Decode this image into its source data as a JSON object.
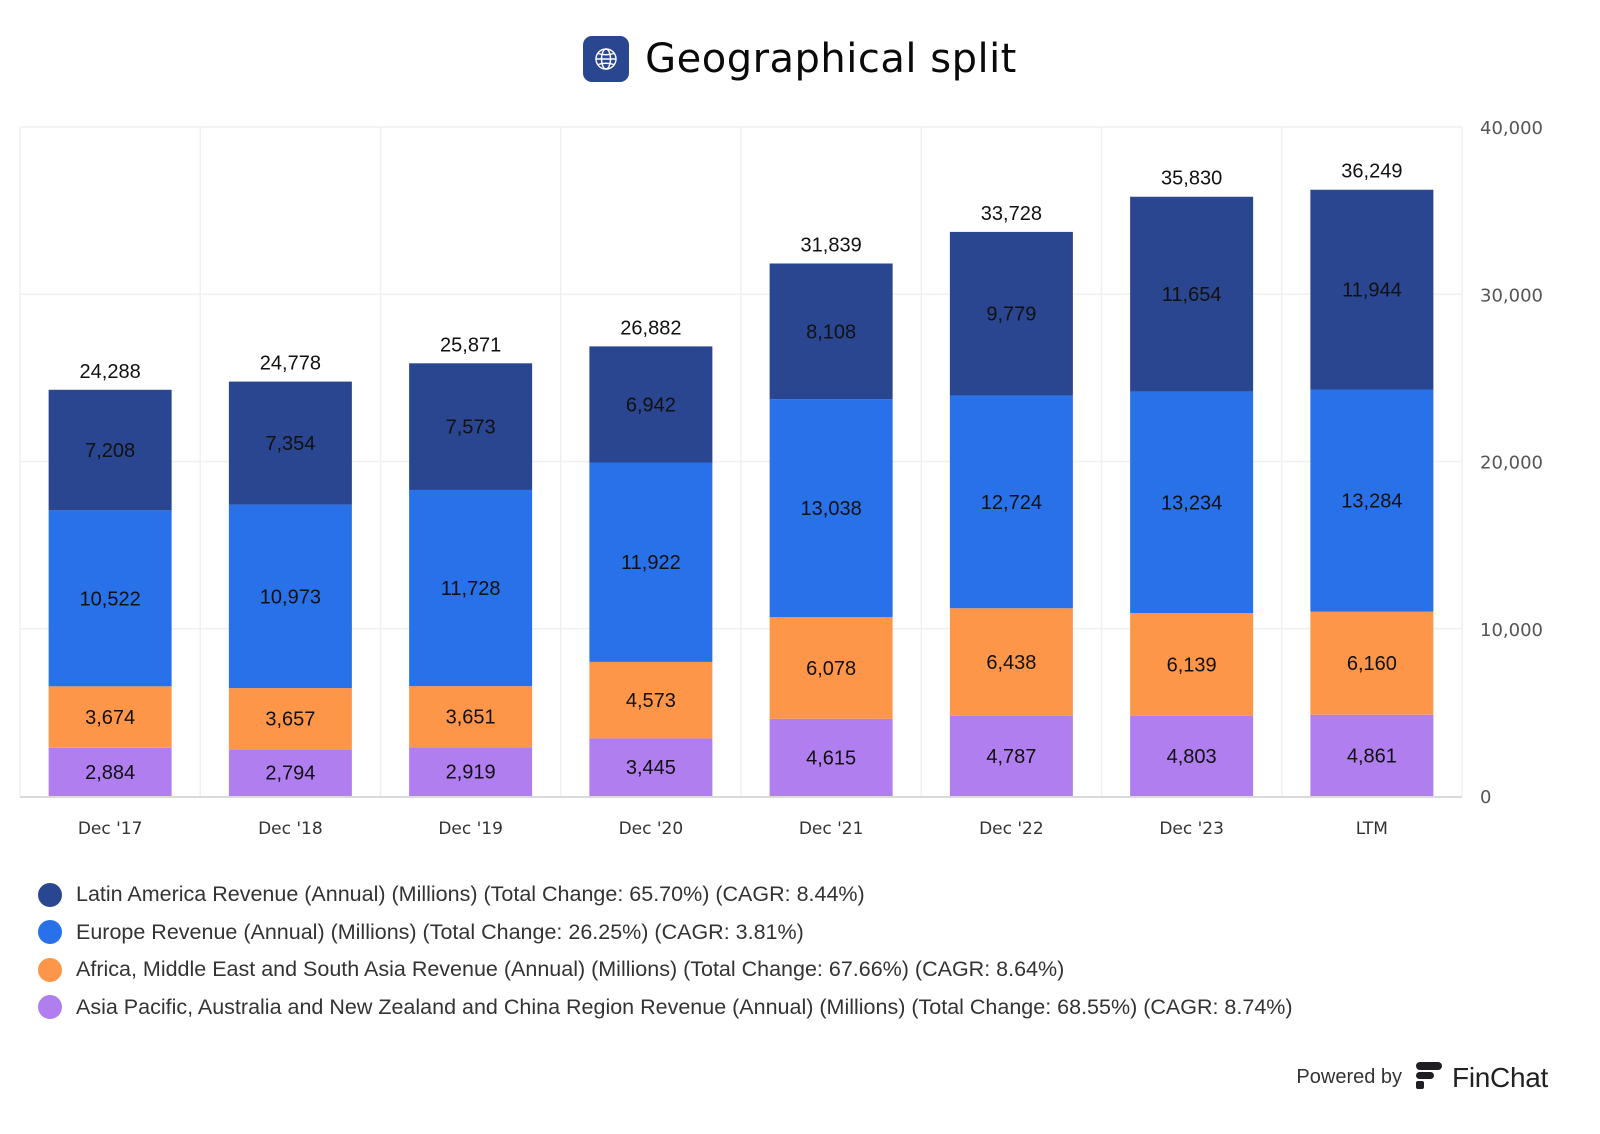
{
  "header": {
    "title": "Geographical split",
    "icon": "globe-icon"
  },
  "colors": {
    "latin_america": "#2a4690",
    "europe": "#2871e8",
    "africa_me_sa": "#fe964a",
    "apac": "#b07eef",
    "grid": "#f0f0f0",
    "axis": "#d8d8de"
  },
  "chart_data": {
    "type": "bar",
    "stacked": true,
    "title": "Geographical split",
    "xlabel": "",
    "ylabel": "",
    "categories": [
      "Dec '17",
      "Dec '18",
      "Dec '19",
      "Dec '20",
      "Dec '21",
      "Dec '22",
      "Dec '23",
      "LTM"
    ],
    "ylim": [
      0,
      40000
    ],
    "yticks": [
      0,
      10000,
      20000,
      30000,
      40000
    ],
    "ytick_labels": [
      "0",
      "10,000",
      "20,000",
      "30,000",
      "40,000"
    ],
    "yaxis_position": "right",
    "grid": true,
    "legend_position": "bottom-left",
    "totals": [
      24288,
      24778,
      25871,
      26882,
      31839,
      33728,
      35830,
      36249
    ],
    "total_labels": [
      "24,288",
      "24,778",
      "25,871",
      "26,882",
      "31,839",
      "33,728",
      "35,830",
      "36,249"
    ],
    "series": [
      {
        "name": "Asia Pacific, Australia and New Zealand and China Region Revenue (Annual) (Millions) (Total Change: 68.55%) (CAGR: 8.74%)",
        "color": "#b07eef",
        "values": [
          2884,
          2794,
          2919,
          3445,
          4615,
          4787,
          4803,
          4861
        ],
        "labels": [
          "2,884",
          "2,794",
          "2,919",
          "3,445",
          "4,615",
          "4,787",
          "4,803",
          "4,861"
        ]
      },
      {
        "name": "Africa, Middle East and South Asia Revenue (Annual) (Millions) (Total Change: 67.66%) (CAGR: 8.64%)",
        "color": "#fe964a",
        "values": [
          3674,
          3657,
          3651,
          4573,
          6078,
          6438,
          6139,
          6160
        ],
        "labels": [
          "3,674",
          "3,657",
          "3,651",
          "4,573",
          "6,078",
          "6,438",
          "6,139",
          "6,160"
        ]
      },
      {
        "name": "Europe Revenue (Annual) (Millions) (Total Change: 26.25%) (CAGR: 3.81%)",
        "color": "#2871e8",
        "values": [
          10522,
          10973,
          11728,
          11922,
          13038,
          12724,
          13234,
          13284
        ],
        "labels": [
          "10,522",
          "10,973",
          "11,728",
          "11,922",
          "13,038",
          "12,724",
          "13,234",
          "13,284"
        ]
      },
      {
        "name": "Latin America Revenue (Annual) (Millions) (Total Change: 65.70%) (CAGR: 8.44%)",
        "color": "#2a4690",
        "values": [
          7208,
          7354,
          7573,
          6942,
          8108,
          9779,
          11654,
          11944
        ],
        "labels": [
          "7,208",
          "7,354",
          "7,573",
          "6,942",
          "8,108",
          "9,779",
          "11,654",
          "11,944"
        ]
      }
    ]
  },
  "legend": [
    {
      "label": "Latin America Revenue (Annual) (Millions) (Total Change: 65.70%) (CAGR: 8.44%)",
      "color": "#2a4690"
    },
    {
      "label": "Europe Revenue (Annual) (Millions) (Total Change: 26.25%) (CAGR: 3.81%)",
      "color": "#2871e8"
    },
    {
      "label": "Africa, Middle East and South Asia Revenue (Annual) (Millions) (Total Change: 67.66%) (CAGR: 8.64%)",
      "color": "#fe964a"
    },
    {
      "label": "Asia Pacific, Australia and New Zealand and China Region Revenue (Annual) (Millions) (Total Change: 68.55%) (CAGR: 8.74%)",
      "color": "#b07eef"
    }
  ],
  "footer": {
    "powered_by": "Powered by",
    "brand": "FinChat",
    "brand_icon": "finchat-logo-icon"
  }
}
